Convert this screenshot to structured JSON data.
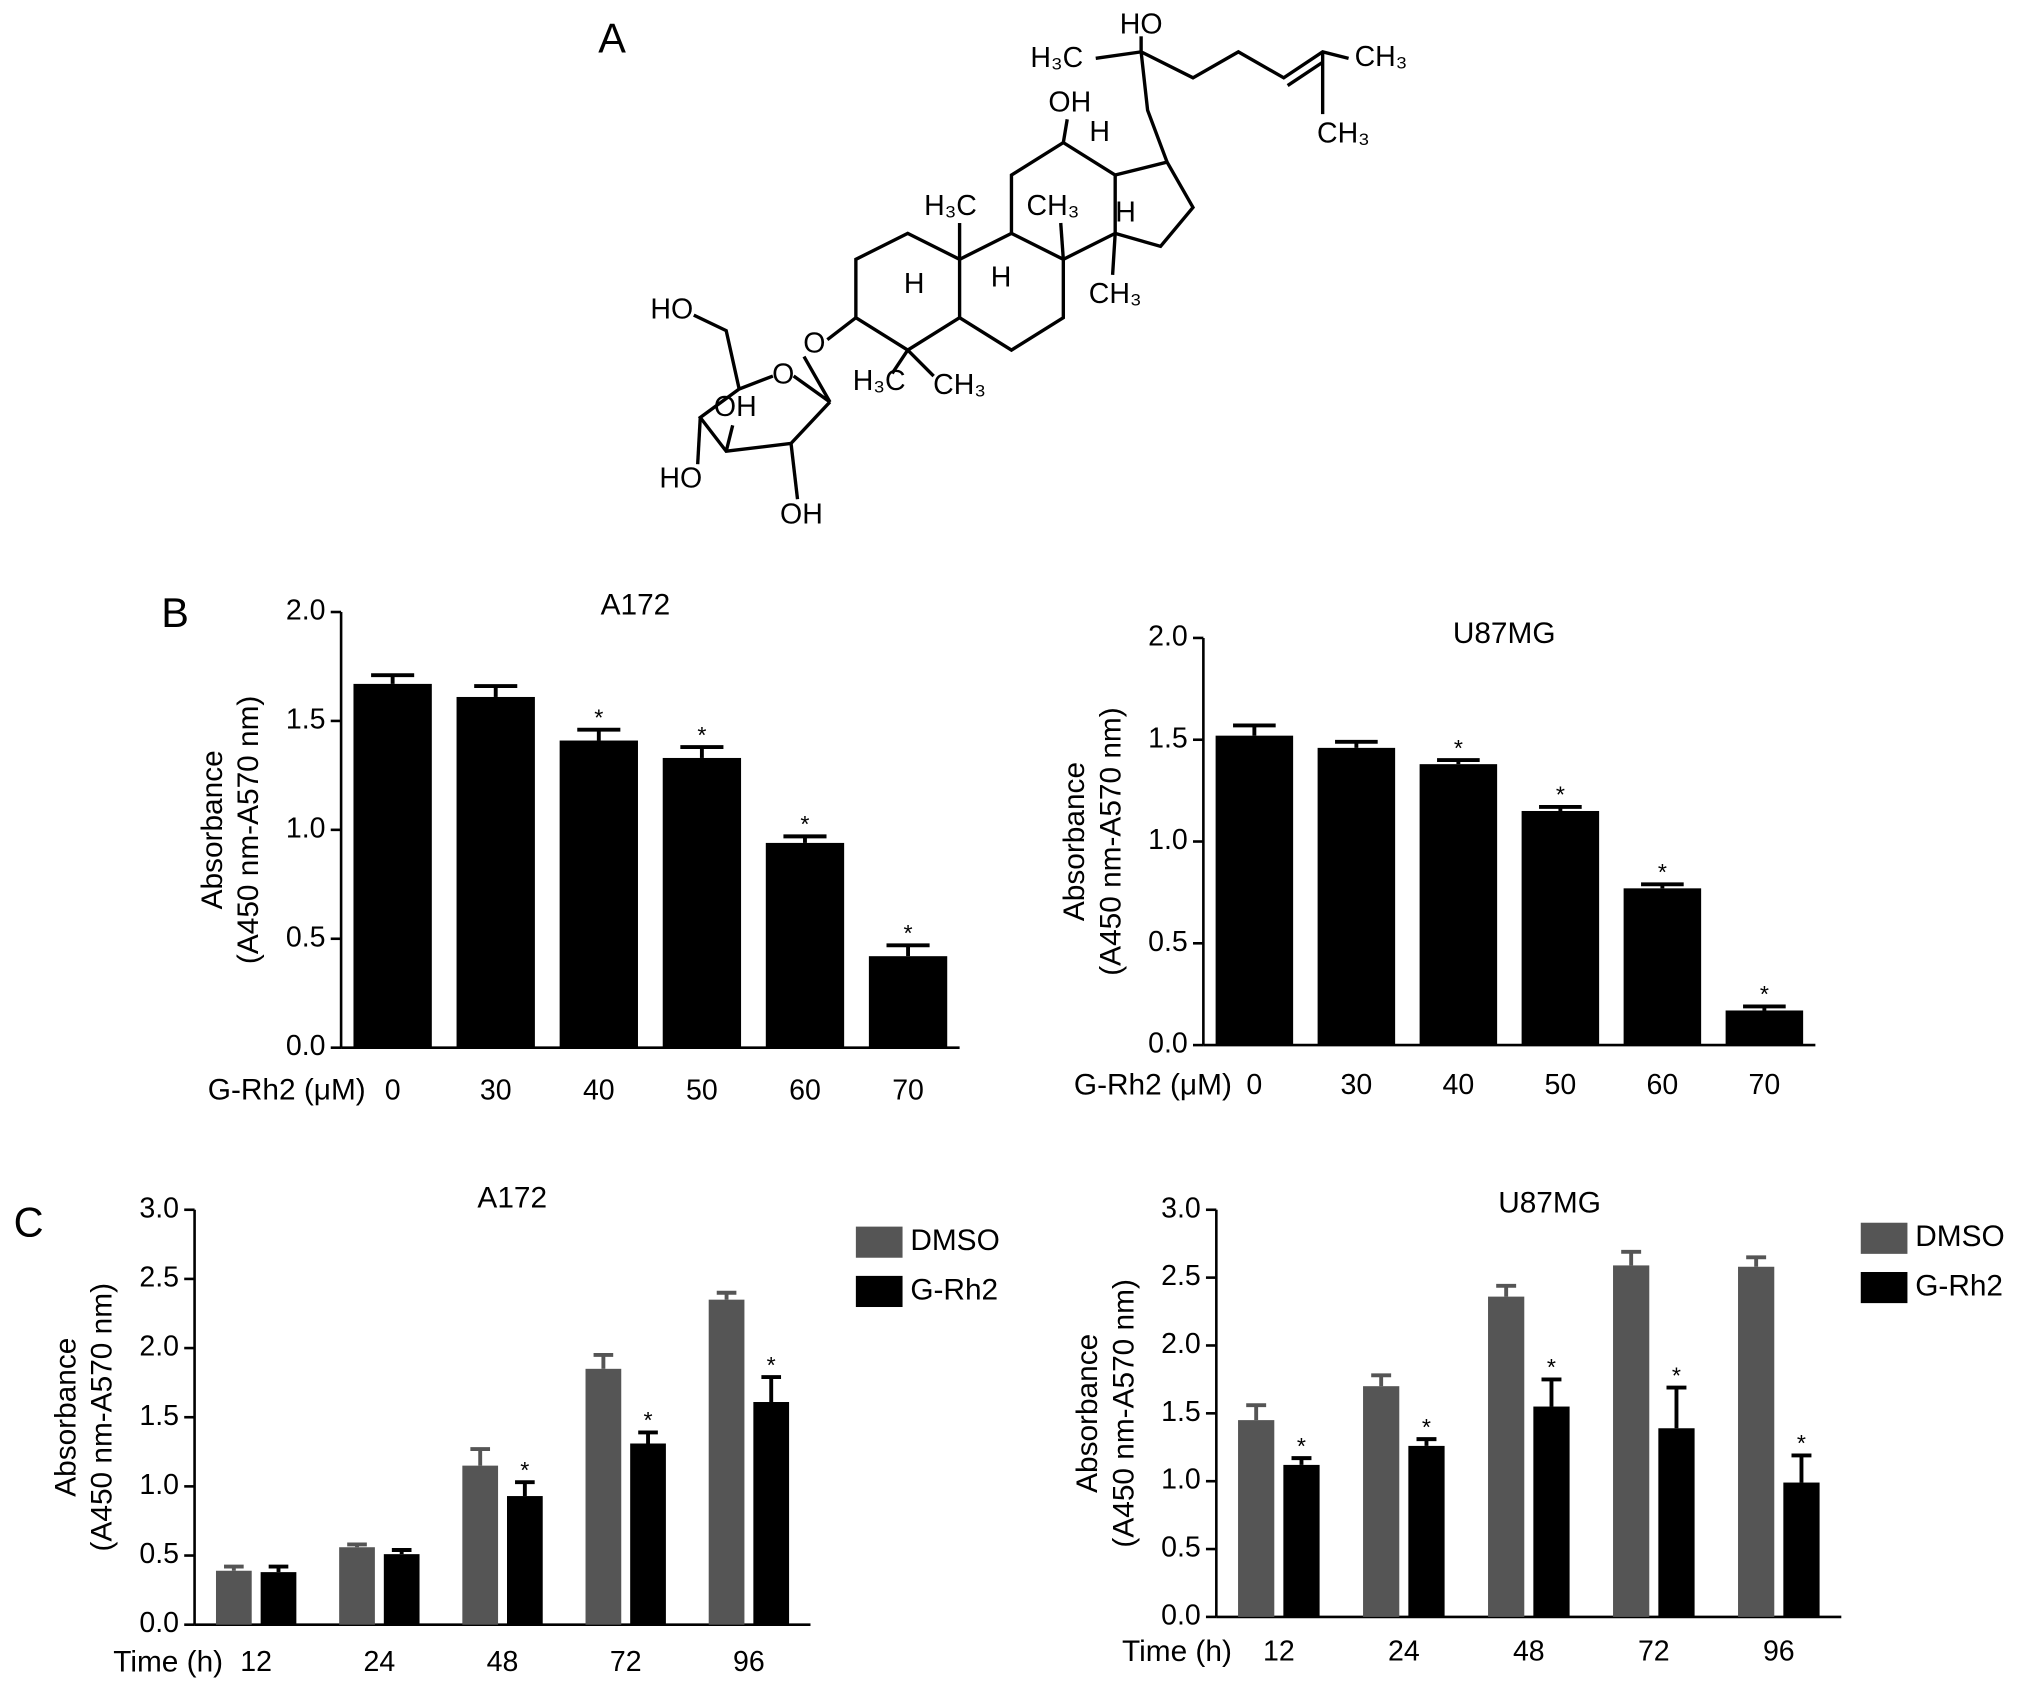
{
  "structure": {
    "panel_label": "A",
    "labels": [
      "HO",
      "H₃C",
      "CH₃",
      "CH₃",
      "OH",
      "H",
      "H₃C",
      "CH₃",
      "H",
      "H",
      "H",
      "CH₃",
      "HO",
      "O",
      "H₃C",
      "CH₃",
      "O",
      "OH",
      "HO",
      "OH"
    ]
  },
  "chart_data": [
    {
      "type": "bar",
      "panel_label": "B",
      "title": "A172",
      "x_label": "G-Rh2 (μM)",
      "y_label": [
        "Absorbance",
        "(A450 nm-A570 nm)"
      ],
      "categories": [
        "0",
        "30",
        "40",
        "50",
        "60",
        "70"
      ],
      "values": [
        1.67,
        1.61,
        1.41,
        1.33,
        0.94,
        0.42
      ],
      "errors": [
        0.04,
        0.05,
        0.05,
        0.05,
        0.03,
        0.05
      ],
      "significance": [
        null,
        null,
        "*",
        "*",
        "*",
        "*"
      ],
      "color": "#000000",
      "ylim": [
        0,
        2.0
      ],
      "yticks": [
        {
          "value": 0,
          "label": "0.0"
        },
        {
          "value": 0.5,
          "label": "0.5"
        },
        {
          "value": 1,
          "label": "1.0"
        },
        {
          "value": 1.5,
          "label": "1.5"
        },
        {
          "value": 2,
          "label": "2.0"
        }
      ]
    },
    {
      "type": "bar",
      "title": "U87MG",
      "x_label": "G-Rh2 (μM)",
      "y_label": [
        "Absorbance",
        "(A450 nm-A570 nm)"
      ],
      "categories": [
        "0",
        "30",
        "40",
        "50",
        "60",
        "70"
      ],
      "values": [
        1.52,
        1.46,
        1.38,
        1.15,
        0.77,
        0.17
      ],
      "errors": [
        0.05,
        0.03,
        0.02,
        0.02,
        0.02,
        0.02
      ],
      "significance": [
        null,
        null,
        "*",
        "*",
        "*",
        "*"
      ],
      "color": "#000000",
      "ylim": [
        0,
        2.0
      ],
      "yticks": [
        {
          "value": 0,
          "label": "0.0"
        },
        {
          "value": 0.5,
          "label": "0.5"
        },
        {
          "value": 1,
          "label": "1.0"
        },
        {
          "value": 1.5,
          "label": "1.5"
        },
        {
          "value": 2,
          "label": "2.0"
        }
      ]
    },
    {
      "type": "grouped_bar",
      "panel_label": "C",
      "title": "A172",
      "x_label": "Time (h)",
      "y_label": [
        "Absorbance",
        "(A450 nm-A570 nm)"
      ],
      "categories": [
        "12",
        "24",
        "48",
        "72",
        "96"
      ],
      "series": [
        {
          "name": "DMSO",
          "color": "#555555",
          "values": [
            0.39,
            0.56,
            1.15,
            1.85,
            2.35
          ],
          "errors": [
            0.03,
            0.02,
            0.12,
            0.1,
            0.05
          ],
          "significance": [
            null,
            null,
            null,
            null,
            null
          ]
        },
        {
          "name": "G-Rh2",
          "color": "#000000",
          "values": [
            0.38,
            0.51,
            0.93,
            1.31,
            1.61
          ],
          "errors": [
            0.04,
            0.03,
            0.1,
            0.08,
            0.18
          ],
          "significance": [
            null,
            null,
            "*",
            "*",
            "*"
          ]
        }
      ],
      "legend": "upper right outside",
      "ylim": [
        0,
        3.0
      ],
      "yticks": [
        {
          "value": 0,
          "label": "0.0"
        },
        {
          "value": 0.5,
          "label": "0.5"
        },
        {
          "value": 1,
          "label": "1.0"
        },
        {
          "value": 1.5,
          "label": "1.5"
        },
        {
          "value": 2,
          "label": "2.0"
        },
        {
          "value": 2.5,
          "label": "2.5"
        },
        {
          "value": 3,
          "label": "3.0"
        }
      ]
    },
    {
      "type": "grouped_bar",
      "title": "U87MG",
      "x_label": "Time (h)",
      "y_label": [
        "Absorbance",
        "(A450 nm-A570 nm)"
      ],
      "categories": [
        "12",
        "24",
        "48",
        "72",
        "96"
      ],
      "series": [
        {
          "name": "DMSO",
          "color": "#555555",
          "values": [
            1.45,
            1.7,
            2.36,
            2.59,
            2.58
          ],
          "errors": [
            0.11,
            0.08,
            0.08,
            0.1,
            0.07
          ],
          "significance": [
            null,
            null,
            null,
            null,
            null
          ]
        },
        {
          "name": "G-Rh2",
          "color": "#000000",
          "values": [
            1.12,
            1.26,
            1.55,
            1.39,
            0.99
          ],
          "errors": [
            0.05,
            0.05,
            0.2,
            0.3,
            0.2
          ],
          "significance": [
            "*",
            "*",
            "*",
            "*",
            "*"
          ]
        }
      ],
      "legend": "upper right outside",
      "ylim": [
        0,
        3.0
      ],
      "yticks": [
        {
          "value": 0,
          "label": "0.0"
        },
        {
          "value": 0.5,
          "label": "0.5"
        },
        {
          "value": 1,
          "label": "1.0"
        },
        {
          "value": 1.5,
          "label": "1.5"
        },
        {
          "value": 2,
          "label": "2.0"
        },
        {
          "value": 2.5,
          "label": "2.5"
        },
        {
          "value": 3,
          "label": "3.0"
        }
      ]
    }
  ]
}
